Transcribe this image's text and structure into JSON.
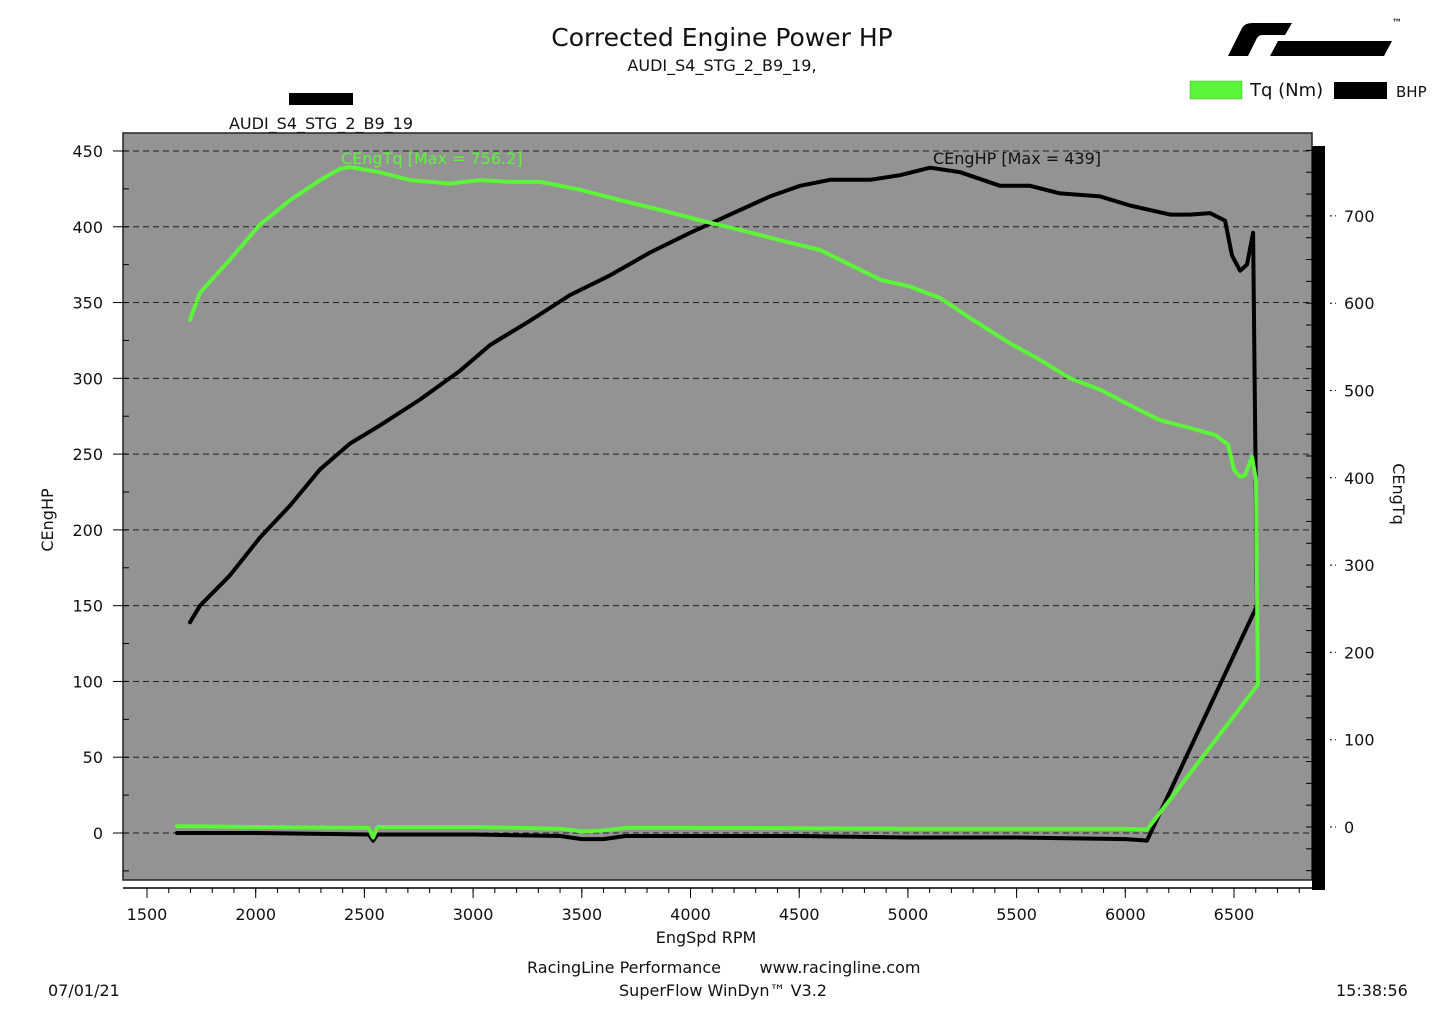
{
  "header": {
    "title": "Corrected Engine Power HP",
    "subtitle": "AUDI_S4_STG_2_B9_19,",
    "run_label": "AUDI_S4_STG_2_B9_19",
    "logo_tm": "™"
  },
  "legend": {
    "items": [
      {
        "label": "Tq (Nm)",
        "color": "#5cf53a"
      },
      {
        "label": "BHP",
        "color": "#000000"
      }
    ]
  },
  "footer": {
    "date": "07/01/21",
    "time": "15:38:56",
    "company": "RacingLine Performance",
    "website": "www.racingline.com",
    "software": "SuperFlow WinDyn™ V3.2"
  },
  "chart_data": {
    "type": "line",
    "title": "Corrected Engine Power HP",
    "xlabel": "EngSpd RPM",
    "ylabel": "CEngHP",
    "y2label": "CEngTq",
    "xlim": [
      1400,
      6850
    ],
    "ylim": [
      -30,
      462
    ],
    "y2lim": [
      -60,
      800
    ],
    "xticks": [
      1500,
      2000,
      2500,
      3000,
      3500,
      4000,
      4500,
      5000,
      5500,
      6000,
      6500
    ],
    "yticks": [
      0,
      50,
      100,
      150,
      200,
      250,
      300,
      350,
      400,
      450
    ],
    "y2ticks": [
      0,
      100,
      200,
      300,
      400,
      500,
      600,
      700
    ],
    "grid": true,
    "background": "#939393",
    "series": [
      {
        "name": "BHP",
        "axis": "left",
        "color": "#000000",
        "annotation": "CEngHP [Max = 439]",
        "points": [
          [
            1698,
            139
          ],
          [
            1744,
            150
          ],
          [
            1882,
            170
          ],
          [
            2020,
            195
          ],
          [
            2158,
            216
          ],
          [
            2296,
            240
          ],
          [
            2434,
            257
          ],
          [
            2572,
            269
          ],
          [
            2756,
            286
          ],
          [
            2940,
            305
          ],
          [
            3078,
            322
          ],
          [
            3262,
            338
          ],
          [
            3446,
            355
          ],
          [
            3630,
            368
          ],
          [
            3814,
            383
          ],
          [
            3998,
            396
          ],
          [
            4182,
            408
          ],
          [
            4366,
            420
          ],
          [
            4504,
            427
          ],
          [
            4642,
            431
          ],
          [
            4826,
            431
          ],
          [
            4964,
            434
          ],
          [
            5102,
            439
          ],
          [
            5240,
            436
          ],
          [
            5424,
            427
          ],
          [
            5562,
            427
          ],
          [
            5700,
            422
          ],
          [
            5884,
            420
          ],
          [
            6022,
            414
          ],
          [
            6206,
            408
          ],
          [
            6298,
            408
          ],
          [
            6390,
            409
          ],
          [
            6459,
            404
          ],
          [
            6491,
            381
          ],
          [
            6528,
            371
          ],
          [
            6560,
            375
          ],
          [
            6588,
            396
          ],
          [
            6606,
            150
          ],
          [
            6100,
            -5
          ],
          [
            6000,
            -4
          ],
          [
            5500,
            -3
          ],
          [
            5000,
            -3
          ],
          [
            4500,
            -2
          ],
          [
            4000,
            -2
          ],
          [
            3700,
            -2
          ],
          [
            3600,
            -4
          ],
          [
            3500,
            -4
          ],
          [
            3400,
            -2
          ],
          [
            3000,
            -1
          ],
          [
            2560,
            -1
          ],
          [
            2540,
            -5
          ],
          [
            2520,
            -1
          ],
          [
            2000,
            0
          ],
          [
            1638,
            0
          ]
        ]
      },
      {
        "name": "Tq (Nm)",
        "axis": "right",
        "color": "#5cf53a",
        "annotation": "CEngTq [Max = 756.2]",
        "points": [
          [
            1698,
            581
          ],
          [
            1744,
            612
          ],
          [
            1882,
            650
          ],
          [
            2020,
            690
          ],
          [
            2158,
            718
          ],
          [
            2296,
            741
          ],
          [
            2388,
            754
          ],
          [
            2434,
            756
          ],
          [
            2572,
            750
          ],
          [
            2710,
            741
          ],
          [
            2894,
            737
          ],
          [
            3032,
            741
          ],
          [
            3170,
            739
          ],
          [
            3308,
            739
          ],
          [
            3492,
            730
          ],
          [
            3676,
            718
          ],
          [
            3860,
            707
          ],
          [
            4044,
            695
          ],
          [
            4228,
            684
          ],
          [
            4412,
            672
          ],
          [
            4596,
            661
          ],
          [
            4734,
            644
          ],
          [
            4872,
            627
          ],
          [
            5010,
            619
          ],
          [
            5148,
            606
          ],
          [
            5286,
            583
          ],
          [
            5470,
            554
          ],
          [
            5608,
            535
          ],
          [
            5746,
            514
          ],
          [
            5884,
            501
          ],
          [
            6022,
            483
          ],
          [
            6160,
            466
          ],
          [
            6298,
            457
          ],
          [
            6413,
            449
          ],
          [
            6473,
            438
          ],
          [
            6500,
            409
          ],
          [
            6528,
            401
          ],
          [
            6551,
            403
          ],
          [
            6583,
            424
          ],
          [
            6601,
            397
          ],
          [
            6610,
            163
          ],
          [
            6100,
            -3
          ],
          [
            6000,
            -2
          ],
          [
            5000,
            -2
          ],
          [
            4000,
            -1
          ],
          [
            3700,
            -1
          ],
          [
            3600,
            -4
          ],
          [
            3500,
            -5
          ],
          [
            3400,
            -2
          ],
          [
            3000,
            0
          ],
          [
            2560,
            0
          ],
          [
            2540,
            -12
          ],
          [
            2520,
            -1
          ],
          [
            2000,
            0
          ],
          [
            1638,
            1
          ]
        ]
      }
    ]
  }
}
